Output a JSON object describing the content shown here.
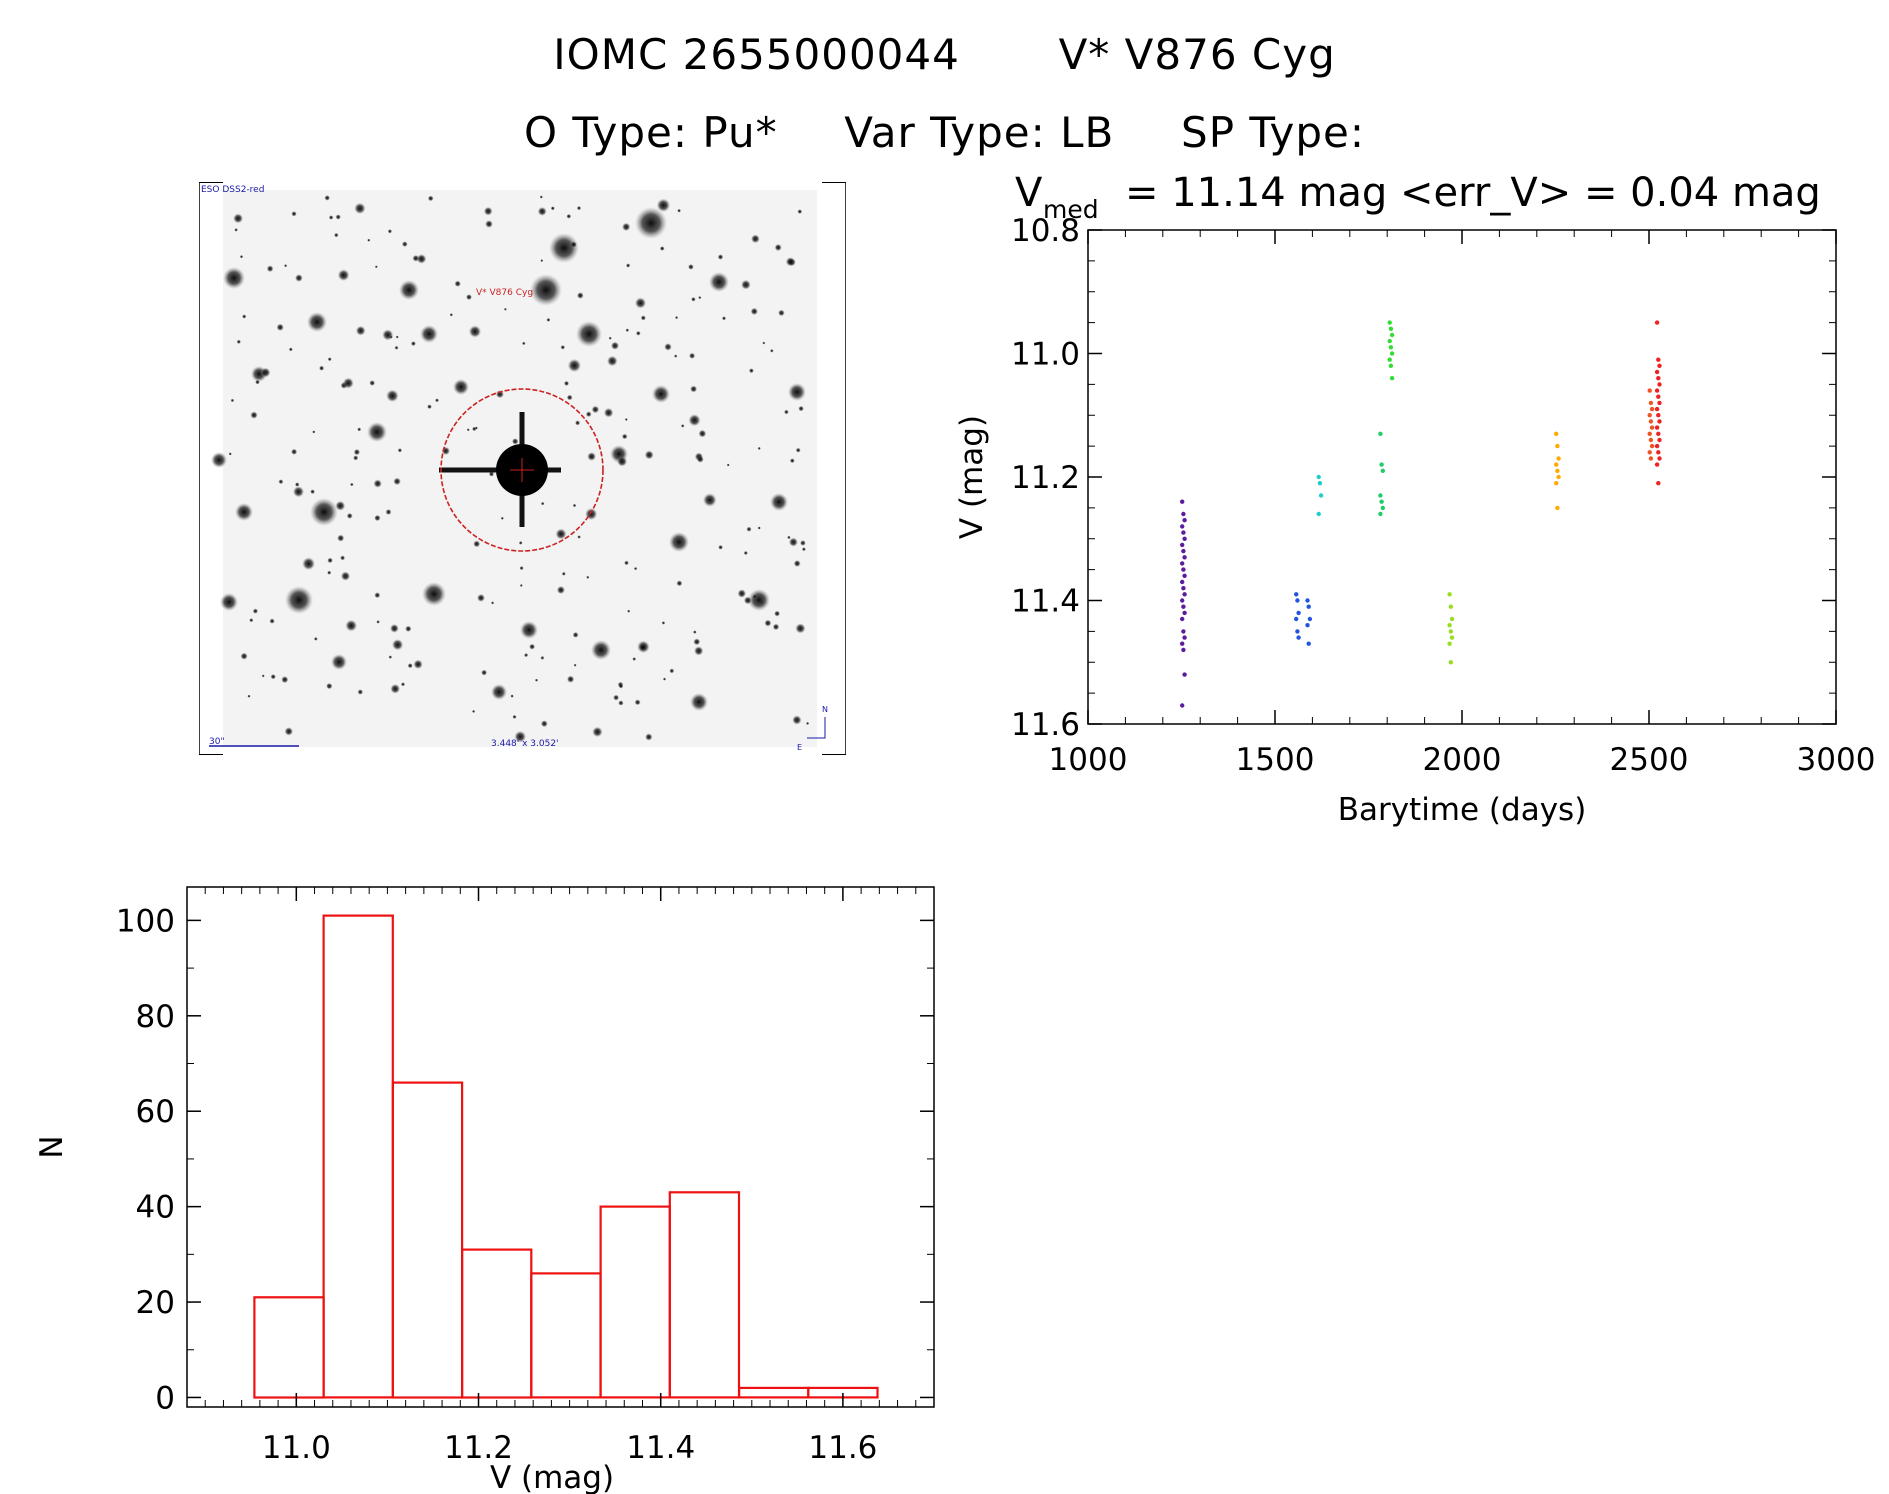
{
  "header": {
    "object_id": "IOMC 2655000044",
    "object_name": "V* V876 Cyg",
    "o_type": "O Type: Pu*",
    "var_type": "Var Type: LB",
    "sp_type": "SP Type:"
  },
  "finder": {
    "survey_label": "ESO DSS2-red",
    "target_label": "V* V876 Cyg",
    "scale_label": "30\"",
    "fov_label": "3.448' x 3.052'",
    "north_label": "N",
    "east_label": "E",
    "colors": {
      "circle": "#cc2222",
      "annotation": "#1a1aa8",
      "target_label": "#cc2222"
    }
  },
  "chart_data": [
    {
      "type": "scatter",
      "title_vmed_symbol": "V",
      "title_vmed_sub": "med",
      "title_rest": "= 11.14 mag <err_V> = 0.04 mag",
      "xlabel": "Barytime (days)",
      "ylabel": "V (mag)",
      "xlim": [
        1000,
        3000
      ],
      "ylim": [
        10.8,
        11.6
      ],
      "y_inverted": true,
      "xticks": [
        "1000",
        "1500",
        "2000",
        "2500",
        "3000"
      ],
      "yticks": [
        "10.8",
        "11.0",
        "11.2",
        "11.4",
        "11.6"
      ],
      "series": [
        {
          "name": "g1",
          "color": "#5b1c9e",
          "x": 1255,
          "values": [
            11.24,
            11.26,
            11.27,
            11.28,
            11.29,
            11.3,
            11.31,
            11.32,
            11.33,
            11.34,
            11.35,
            11.36,
            11.37,
            11.38,
            11.39,
            11.4,
            11.41,
            11.42,
            11.43,
            11.45,
            11.46,
            11.47,
            11.48,
            11.52,
            11.57
          ]
        },
        {
          "name": "g2",
          "color": "#2255dd",
          "x": 1560,
          "values": [
            11.39,
            11.4,
            11.42,
            11.43,
            11.45,
            11.46
          ]
        },
        {
          "name": "g3",
          "color": "#2255dd",
          "x": 1590,
          "values": [
            11.4,
            11.41,
            11.43,
            11.44,
            11.47
          ]
        },
        {
          "name": "g4",
          "color": "#22cccc",
          "x": 1620,
          "values": [
            11.2,
            11.21,
            11.23,
            11.26
          ]
        },
        {
          "name": "g5",
          "color": "#22cc66",
          "x": 1785,
          "values": [
            11.13,
            11.18,
            11.19,
            11.23,
            11.24,
            11.25,
            11.26
          ]
        },
        {
          "name": "g6",
          "color": "#33dd33",
          "x": 1810,
          "values": [
            10.95,
            10.96,
            10.97,
            10.98,
            10.99,
            11.0,
            11.01,
            11.02,
            11.04
          ]
        },
        {
          "name": "g7",
          "color": "#99dd22",
          "x": 1970,
          "values": [
            11.39,
            11.41,
            11.43,
            11.44,
            11.45,
            11.46,
            11.47,
            11.5
          ]
        },
        {
          "name": "g8",
          "color": "#ffaa00",
          "x": 2255,
          "values": [
            11.13,
            11.15,
            11.17,
            11.18,
            11.19,
            11.2,
            11.21,
            11.25
          ]
        },
        {
          "name": "g9",
          "color": "#ee5522",
          "x": 2505,
          "values": [
            11.06,
            11.08,
            11.09,
            11.1,
            11.11,
            11.12,
            11.13,
            11.14,
            11.15,
            11.16,
            11.17
          ]
        },
        {
          "name": "g10",
          "color": "#ee2222",
          "x": 2525,
          "values": [
            10.95,
            11.01,
            11.02,
            11.03,
            11.04,
            11.05,
            11.06,
            11.07,
            11.08,
            11.09,
            11.1,
            11.11,
            11.12,
            11.13,
            11.14,
            11.15,
            11.16,
            11.17,
            11.18,
            11.21
          ]
        }
      ]
    },
    {
      "type": "bar",
      "xlabel": "V (mag)",
      "ylabel": "N",
      "bin_edges": [
        10.954,
        11.03,
        11.106,
        11.182,
        11.258,
        11.334,
        11.41,
        11.486,
        11.562,
        11.638
      ],
      "values": [
        21,
        101,
        66,
        31,
        26,
        40,
        43,
        2,
        2
      ],
      "xlim": [
        10.88,
        11.7
      ],
      "ylim": [
        -2,
        107
      ],
      "xticks": [
        "11.0",
        "11.2",
        "11.4",
        "11.6"
      ],
      "yticks": [
        "0",
        "20",
        "40",
        "60",
        "80",
        "100"
      ],
      "bar_color": "#ee1111"
    }
  ]
}
